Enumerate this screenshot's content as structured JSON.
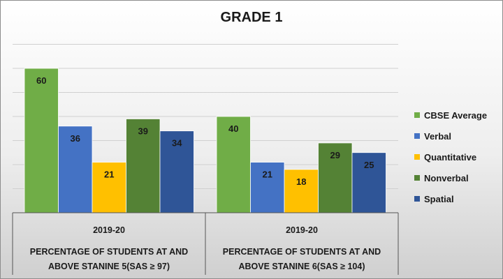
{
  "chart_data": {
    "type": "bar",
    "title": "GRADE 1",
    "groups": [
      {
        "year": "2019-20",
        "label_line1": "PERCENTAGE OF STUDENTS AT AND",
        "label_line2": "ABOVE STANINE 5(SAS ≥ 97)"
      },
      {
        "year": "2019-20",
        "label_line1": "PERCENTAGE OF STUDENTS AT AND",
        "label_line2": "ABOVE STANINE 6(SAS ≥ 104)"
      }
    ],
    "series": [
      {
        "name": "CBSE Average",
        "color": "#70ad47",
        "values": [
          60,
          40
        ]
      },
      {
        "name": "Verbal",
        "color": "#4472c4",
        "values": [
          36,
          21
        ]
      },
      {
        "name": "Quantitative",
        "color": "#ffc000",
        "values": [
          21,
          18
        ]
      },
      {
        "name": "Nonverbal",
        "color": "#548235",
        "values": [
          39,
          29
        ]
      },
      {
        "name": "Spatial",
        "color": "#2f5597",
        "values": [
          34,
          25
        ]
      }
    ],
    "ylim": [
      0,
      70
    ],
    "grid": true,
    "legend_position": "right"
  }
}
